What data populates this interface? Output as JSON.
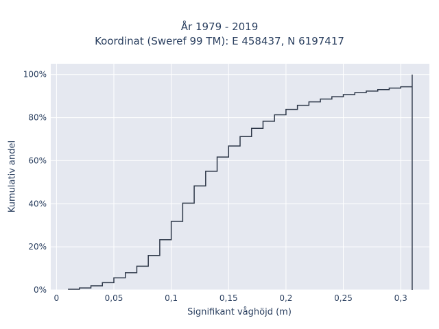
{
  "chart_data": {
    "type": "line",
    "line_shape": "step",
    "title": "År 1979 - 2019",
    "subtitle": "Koordinat (Sweref 99 TM): E 458437, N 6197417",
    "xlabel": "Signifikant våghöjd (m)",
    "ylabel": "Kumulativ andel",
    "xlim": [
      -0.005,
      0.325
    ],
    "ylim": [
      0,
      1.05
    ],
    "x_ticks": [
      0,
      0.05,
      0.1,
      0.15,
      0.2,
      0.25,
      0.3
    ],
    "x_tick_labels": [
      "0",
      "0,05",
      "0,1",
      "0,15",
      "0,2",
      "0,25",
      "0,3"
    ],
    "y_ticks": [
      0,
      0.2,
      0.4,
      0.6,
      0.8,
      1.0
    ],
    "y_tick_labels": [
      "0%",
      "20%",
      "40%",
      "60%",
      "80%",
      "100%"
    ],
    "grid": true,
    "legend": false,
    "colors": {
      "plot_bg": "#e5e8f0",
      "grid": "#ffffff",
      "line": "#2d3748",
      "text": "#2a3f5f"
    },
    "series": [
      {
        "x": [
          0.01,
          0.02,
          0.03,
          0.04,
          0.05,
          0.06,
          0.07,
          0.08,
          0.09,
          0.1,
          0.11,
          0.12,
          0.13,
          0.14,
          0.15,
          0.16,
          0.17,
          0.18,
          0.19,
          0.2,
          0.21,
          0.22,
          0.23,
          0.24,
          0.25,
          0.26,
          0.27,
          0.28,
          0.29,
          0.3,
          0.31
        ],
        "y": [
          0.003,
          0.009,
          0.019,
          0.034,
          0.056,
          0.08,
          0.11,
          0.16,
          0.233,
          0.318,
          0.403,
          0.483,
          0.551,
          0.617,
          0.668,
          0.712,
          0.75,
          0.783,
          0.813,
          0.838,
          0.857,
          0.873,
          0.886,
          0.897,
          0.907,
          0.916,
          0.923,
          0.93,
          0.937,
          0.943,
          1.0
        ]
      }
    ]
  }
}
